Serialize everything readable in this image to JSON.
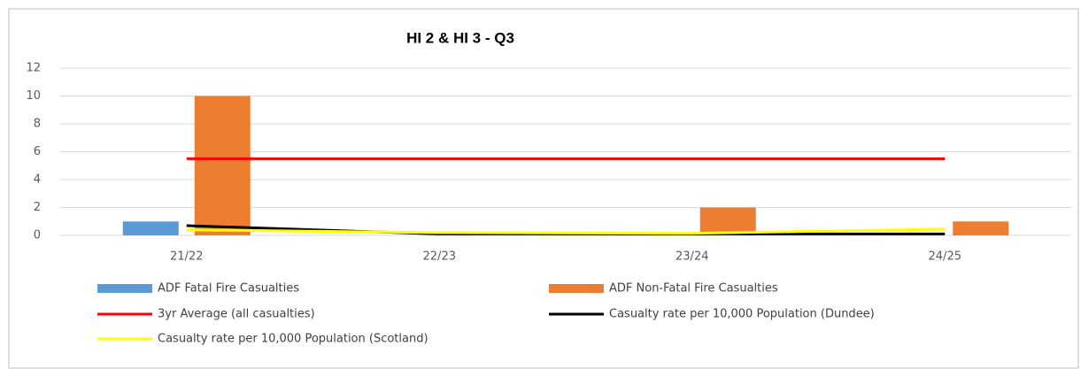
{
  "chart_data": {
    "type": "bar",
    "title": "HI 2 & HI 3 - Q3",
    "categories": [
      "21/22",
      "22/23",
      "23/24",
      "24/25"
    ],
    "series": [
      {
        "name": "ADF Fatal Fire Casualties",
        "type": "bar",
        "color": "#5b9bd5",
        "values": [
          1,
          0,
          0,
          0
        ]
      },
      {
        "name": "ADF Non-Fatal Fire Casualties",
        "type": "bar",
        "color": "#ed7d31",
        "values": [
          10,
          0,
          2,
          1
        ]
      },
      {
        "name": "3yr Average (all casualties)",
        "type": "line",
        "color": "#ff0000",
        "values": [
          5.5,
          5.5,
          5.5,
          5.5
        ]
      },
      {
        "name": "Casualty rate per 10,000 Population (Dundee)",
        "type": "line",
        "color": "#000000",
        "values": [
          0.7,
          0.1,
          0.1,
          0.1
        ]
      },
      {
        "name": "Casualty rate per 10,000 Population (Scotland)",
        "type": "line",
        "color": "#ffff00",
        "values": [
          0.4,
          0.2,
          0.15,
          0.45
        ]
      }
    ],
    "ylim": [
      0,
      12
    ],
    "yticks": [
      0,
      2,
      4,
      6,
      8,
      10,
      12
    ],
    "grid": true,
    "legend": "bottom"
  }
}
